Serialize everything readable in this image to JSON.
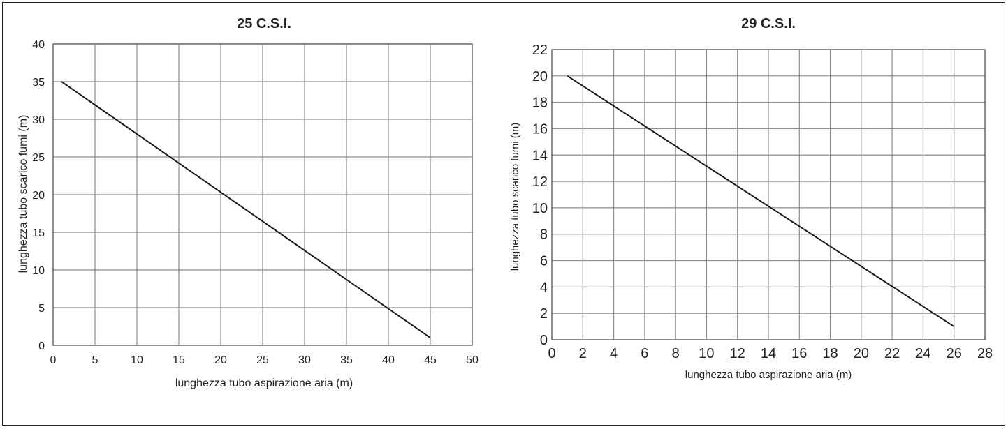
{
  "chart_data": [
    {
      "type": "line",
      "title": "25 C.S.I.",
      "xlabel": "lunghezza tubo aspirazione aria (m)",
      "ylabel": "lunghezza tubo scarico fumi (m)",
      "xlim": [
        0,
        50
      ],
      "ylim": [
        0,
        40
      ],
      "xticks": [
        "0",
        "5",
        "10",
        "15",
        "20",
        "25",
        "30",
        "35",
        "40",
        "45",
        "50"
      ],
      "yticks": [
        "0",
        "5",
        "10",
        "15",
        "20",
        "25",
        "30",
        "35",
        "40"
      ],
      "grid": true,
      "series": [
        {
          "x": [
            1,
            45
          ],
          "y": [
            35,
            1
          ]
        }
      ]
    },
    {
      "type": "line",
      "title": "29 C.S.I.",
      "xlabel": "lunghezza tubo aspirazione aria (m)",
      "ylabel": "lunghezza tubo scarico fumi (m)",
      "xlim": [
        0,
        28
      ],
      "ylim": [
        0,
        22
      ],
      "xticks": [
        "0",
        "2",
        "4",
        "6",
        "8",
        "10",
        "12",
        "14",
        "16",
        "18",
        "20",
        "22",
        "24",
        "26",
        "28"
      ],
      "yticks": [
        "0",
        "2",
        "4",
        "6",
        "8",
        "10",
        "12",
        "14",
        "16",
        "18",
        "20",
        "22"
      ],
      "grid": true,
      "series": [
        {
          "x": [
            1,
            26
          ],
          "y": [
            20,
            1
          ]
        }
      ]
    }
  ],
  "colors": {
    "grid": "#8c8c8c",
    "line": "#1a1a1a",
    "text": "#222222"
  }
}
